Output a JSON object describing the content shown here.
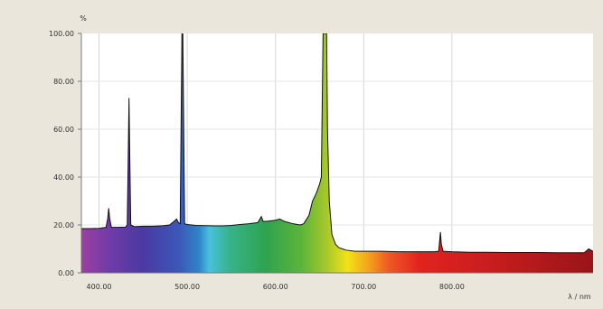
{
  "chart_data": {
    "type": "area",
    "title": "",
    "xlabel": "λ / nm",
    "ylabel": "%",
    "xlim": [
      380,
      960
    ],
    "ylim": [
      0,
      100
    ],
    "grid": true,
    "x_ticks": [
      400,
      500,
      600,
      700,
      800
    ],
    "x_tick_labels": [
      "400.00",
      "500.00",
      "600.00",
      "700.00",
      "800.00"
    ],
    "y_ticks": [
      0,
      20,
      40,
      60,
      80,
      100
    ],
    "y_tick_labels": [
      "0.00",
      "20.00",
      "40.00",
      "60.00",
      "80.00",
      "100.00"
    ],
    "fill_style": "visible spectrum gradient (violet to deep red)",
    "series": [
      {
        "points": [
          [
            380,
            18.5
          ],
          [
            390,
            18.5
          ],
          [
            400,
            18.6
          ],
          [
            408,
            19.0
          ],
          [
            410,
            23.0
          ],
          [
            411,
            27.0
          ],
          [
            412,
            23.0
          ],
          [
            414,
            19.0
          ],
          [
            420,
            19.0
          ],
          [
            430,
            19.1
          ],
          [
            432,
            20.0
          ],
          [
            433,
            45.0
          ],
          [
            434,
            73.0
          ],
          [
            435,
            45.0
          ],
          [
            436,
            20.0
          ],
          [
            440,
            19.3
          ],
          [
            450,
            19.5
          ],
          [
            460,
            19.5
          ],
          [
            470,
            19.6
          ],
          [
            480,
            20.0
          ],
          [
            485,
            21.5
          ],
          [
            488,
            22.5
          ],
          [
            490,
            21.0
          ],
          [
            492,
            20.5
          ],
          [
            493,
            60.0
          ],
          [
            494,
            100.0
          ],
          [
            495,
            100.0
          ],
          [
            496,
            60.0
          ],
          [
            497,
            20.5
          ],
          [
            500,
            20.2
          ],
          [
            510,
            19.8
          ],
          [
            520,
            19.7
          ],
          [
            530,
            19.6
          ],
          [
            540,
            19.6
          ],
          [
            550,
            19.8
          ],
          [
            560,
            20.2
          ],
          [
            570,
            20.5
          ],
          [
            580,
            21.0
          ],
          [
            584,
            23.5
          ],
          [
            586,
            21.5
          ],
          [
            590,
            21.5
          ],
          [
            600,
            22.0
          ],
          [
            605,
            22.5
          ],
          [
            610,
            21.5
          ],
          [
            620,
            20.5
          ],
          [
            628,
            20.0
          ],
          [
            632,
            20.5
          ],
          [
            638,
            24.0
          ],
          [
            642,
            30.0
          ],
          [
            646,
            33.0
          ],
          [
            650,
            37.0
          ],
          [
            652,
            40.0
          ],
          [
            653,
            70.0
          ],
          [
            654,
            100.0
          ],
          [
            658,
            100.0
          ],
          [
            659,
            60.0
          ],
          [
            661,
            30.0
          ],
          [
            664,
            16.0
          ],
          [
            668,
            12.0
          ],
          [
            672,
            10.5
          ],
          [
            680,
            9.5
          ],
          [
            690,
            9.0
          ],
          [
            700,
            9.0
          ],
          [
            720,
            9.0
          ],
          [
            740,
            8.8
          ],
          [
            760,
            8.8
          ],
          [
            780,
            8.8
          ],
          [
            785,
            9.0
          ],
          [
            786,
            13.0
          ],
          [
            787,
            17.0
          ],
          [
            788,
            12.0
          ],
          [
            790,
            9.0
          ],
          [
            800,
            8.8
          ],
          [
            820,
            8.6
          ],
          [
            840,
            8.6
          ],
          [
            860,
            8.5
          ],
          [
            880,
            8.5
          ],
          [
            900,
            8.5
          ],
          [
            920,
            8.4
          ],
          [
            940,
            8.4
          ],
          [
            950,
            8.4
          ],
          [
            955,
            10.0
          ],
          [
            960,
            9.0
          ]
        ]
      }
    ]
  }
}
